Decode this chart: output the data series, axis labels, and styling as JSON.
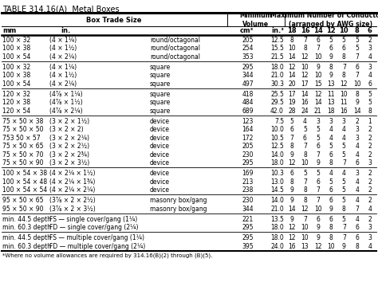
{
  "title": "TABLE 314.16(A)  Metal Boxes",
  "sections": [
    {
      "rows": [
        [
          "100 × 32",
          "(4 × 1¼)",
          "round/octagonal",
          "205",
          "12.5",
          "8",
          "7",
          "6",
          "5",
          "5",
          "5",
          "2"
        ],
        [
          "100 × 38",
          "(4 × 1½)",
          "round/octagonal",
          "254",
          "15.5",
          "10",
          "8",
          "7",
          "6",
          "6",
          "5",
          "3"
        ],
        [
          "100 × 54",
          "(4 × 2¼)",
          "round/octagonal",
          "353",
          "21.5",
          "14",
          "12",
          "10",
          "9",
          "8",
          "7",
          "4"
        ]
      ]
    },
    {
      "rows": [
        [
          "100 × 32",
          "(4 × 1¼)",
          "square",
          "295",
          "18.0",
          "12",
          "10",
          "9",
          "8",
          "7",
          "6",
          "3"
        ],
        [
          "100 × 38",
          "(4 × 1½)",
          "square",
          "344",
          "21.0",
          "14",
          "12",
          "10",
          "9",
          "8",
          "7",
          "4"
        ],
        [
          "100 × 54",
          "(4 × 2¼)",
          "square",
          "497",
          "30.3",
          "20",
          "17",
          "15",
          "13",
          "12",
          "10",
          "6"
        ]
      ]
    },
    {
      "rows": [
        [
          "120 × 32",
          "(4⅞ × 1¼)",
          "square",
          "418",
          "25.5",
          "17",
          "14",
          "12",
          "11",
          "10",
          "8",
          "5"
        ],
        [
          "120 × 38",
          "(4⅞ × 1½)",
          "square",
          "484",
          "29.5",
          "19",
          "16",
          "14",
          "13",
          "11",
          "9",
          "5"
        ],
        [
          "120 × 54",
          "(4⅞ × 2¼)",
          "square",
          "689",
          "42.0",
          "28",
          "24",
          "21",
          "18",
          "16",
          "14",
          "8"
        ]
      ]
    },
    {
      "rows": [
        [
          "75 × 50 × 38",
          "(3 × 2 × 1½)",
          "device",
          "123",
          "7.5",
          "5",
          "4",
          "3",
          "3",
          "3",
          "2",
          "1"
        ],
        [
          "75 × 50 × 50",
          "(3 × 2 × 2)",
          "device",
          "164",
          "10.0",
          "6",
          "5",
          "5",
          "4",
          "4",
          "3",
          "2"
        ],
        [
          "753 50 × 57",
          "(3 × 2 × 2¼)",
          "device",
          "172",
          "10.5",
          "7",
          "6",
          "5",
          "4",
          "4",
          "3",
          "2"
        ],
        [
          "75 × 50 × 65",
          "(3 × 2 × 2½)",
          "device",
          "205",
          "12.5",
          "8",
          "7",
          "6",
          "5",
          "5",
          "4",
          "2"
        ],
        [
          "75 × 50 × 70",
          "(3 × 2 × 2¾)",
          "device",
          "230",
          "14.0",
          "9",
          "8",
          "7",
          "6",
          "5",
          "4",
          "2"
        ],
        [
          "75 × 50 × 90",
          "(3 × 2 × 3½)",
          "device",
          "295",
          "18.0",
          "12",
          "10",
          "9",
          "8",
          "7",
          "6",
          "3"
        ]
      ]
    },
    {
      "rows": [
        [
          "100 × 54 × 38",
          "(4 × 2¼ × 1½)",
          "device",
          "169",
          "10.3",
          "6",
          "5",
          "5",
          "4",
          "4",
          "3",
          "2"
        ],
        [
          "100 × 54 × 48",
          "(4 × 2¼ × 1¾)",
          "device",
          "213",
          "13.0",
          "8",
          "7",
          "6",
          "5",
          "5",
          "4",
          "2"
        ],
        [
          "100 × 54 × 54",
          "(4 × 2¼ × 2¼)",
          "device",
          "238",
          "14.5",
          "9",
          "8",
          "7",
          "6",
          "5",
          "4",
          "2"
        ]
      ]
    },
    {
      "rows": [
        [
          "95 × 50 × 65",
          "(3⅞ × 2 × 2½)",
          "masonry box/gang",
          "230",
          "14.0",
          "9",
          "8",
          "7",
          "6",
          "5",
          "4",
          "2"
        ],
        [
          "95 × 50 × 90",
          "(3⅞ × 2 × 3½)",
          "masonry box/gang",
          "344",
          "21.0",
          "14",
          "12",
          "10",
          "9",
          "8",
          "7",
          "4"
        ]
      ]
    },
    {
      "rows": [
        [
          "min. 44.5 depth",
          "FS — single cover/gang (1¼)",
          "",
          "221",
          "13.5",
          "9",
          "7",
          "6",
          "6",
          "5",
          "4",
          "2"
        ],
        [
          "min. 60.3 depth",
          "FD — single cover/gang (2¼)",
          "",
          "295",
          "18.0",
          "12",
          "10",
          "9",
          "8",
          "7",
          "6",
          "3"
        ]
      ]
    },
    {
      "rows": [
        [
          "min. 44.5 depth",
          "FS — multiple cover/gang (1¼)",
          "",
          "295",
          "18.0",
          "12",
          "10",
          "9",
          "8",
          "7",
          "6",
          "3"
        ],
        [
          "min. 60.3 depth",
          "FD — multiple cover/gang (2¼)",
          "",
          "395",
          "24.0",
          "16",
          "13",
          "12",
          "10",
          "9",
          "8",
          "4"
        ]
      ]
    }
  ],
  "footnote": "*Where no volume allowances are required by 314.16(B)(2) through (B)(5).",
  "bg_color": "#ffffff",
  "text_color": "#000000",
  "fontsize": 5.5,
  "title_fontsize": 7.0,
  "header_fontsize": 6.0
}
